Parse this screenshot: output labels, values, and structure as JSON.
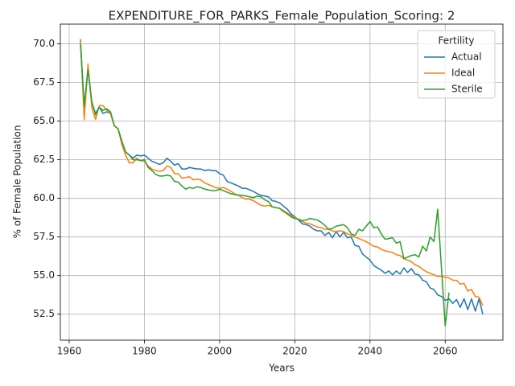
{
  "chart_data": {
    "type": "line",
    "title": "EXPENDITURE_FOR_PARKS_Female_Population_Scoring: 2",
    "x_label": "Years",
    "y_label": "% of Female Population",
    "legend_title": "Fertility",
    "legend": "upper right",
    "grid": true,
    "xlim": [
      1957.65,
      2075.35
    ],
    "ylim": [
      50.82,
      71.28
    ],
    "xticks": [
      1960,
      1980,
      2000,
      2020,
      2040,
      2060
    ],
    "yticks": [
      52.5,
      {
        "value": 55,
        "label": "55.0"
      },
      57.5,
      {
        "value": 60,
        "label": "60.0"
      },
      62.5,
      {
        "value": 65,
        "label": "65.0"
      },
      67.5,
      {
        "value": 70,
        "label": "70.0"
      }
    ],
    "x": [
      1963,
      1964,
      1965,
      1966,
      1967,
      1968,
      1969,
      1970,
      1971,
      1972,
      1973,
      1974,
      1975,
      1976,
      1977,
      1978,
      1979,
      1980,
      1981,
      1982,
      1983,
      1984,
      1985,
      1986,
      1987,
      1988,
      1989,
      1990,
      1991,
      1992,
      1993,
      1994,
      1995,
      1996,
      1997,
      1998,
      1999,
      2000,
      2001,
      2002,
      2003,
      2004,
      2005,
      2006,
      2007,
      2008,
      2009,
      2010,
      2011,
      2012,
      2013,
      2014,
      2015,
      2016,
      2017,
      2018,
      2019,
      2020,
      2021,
      2022,
      2023,
      2024,
      2025,
      2026,
      2027,
      2028,
      2029,
      2030,
      2031,
      2032,
      2033,
      2034,
      2035,
      2036,
      2037,
      2038,
      2039,
      2040,
      2041,
      2042,
      2043,
      2044,
      2045,
      2046,
      2047,
      2048,
      2049,
      2050,
      2051,
      2052,
      2053,
      2054,
      2055,
      2056,
      2057,
      2058,
      2059,
      2060,
      2061,
      2062,
      2063,
      2064,
      2065,
      2066,
      2067,
      2068,
      2069,
      2070
    ],
    "series": [
      {
        "name": "Actual",
        "color": "#1f77b4",
        "values": [
          70.3,
          65.8,
          68.5,
          66.2,
          65.5,
          65.9,
          65.5,
          65.6,
          65.5,
          64.7,
          64.5,
          63.7,
          63.0,
          62.8,
          62.6,
          62.8,
          62.75,
          62.8,
          62.6,
          62.4,
          62.3,
          62.2,
          62.3,
          62.6,
          62.4,
          62.15,
          62.25,
          61.9,
          61.9,
          62.0,
          61.95,
          61.9,
          61.9,
          61.8,
          61.85,
          61.8,
          61.8,
          61.6,
          61.5,
          61.1,
          61.0,
          60.9,
          60.8,
          60.65,
          60.65,
          60.55,
          60.45,
          60.3,
          60.2,
          60.15,
          60.1,
          59.85,
          59.8,
          59.7,
          59.5,
          59.3,
          59.0,
          58.8,
          58.6,
          58.35,
          58.3,
          58.2,
          58.0,
          57.9,
          57.9,
          57.6,
          57.8,
          57.45,
          57.85,
          57.5,
          57.8,
          57.45,
          57.5,
          56.95,
          56.9,
          56.4,
          56.2,
          56.0,
          55.65,
          55.5,
          55.35,
          55.15,
          55.3,
          55.05,
          55.3,
          55.1,
          55.5,
          55.2,
          55.45,
          55.1,
          55.05,
          54.7,
          54.6,
          54.2,
          54.1,
          53.75,
          53.65,
          53.4,
          53.5,
          53.2,
          53.45,
          52.95,
          53.5,
          52.8,
          53.5,
          52.7,
          53.5,
          52.5
        ]
      },
      {
        "name": "Ideal",
        "color": "#ff7f0e",
        "values": [
          70.3,
          65.1,
          68.7,
          65.9,
          65.1,
          66.0,
          66.0,
          65.7,
          65.5,
          64.7,
          64.5,
          63.5,
          62.8,
          62.3,
          62.3,
          62.6,
          62.45,
          62.4,
          62.1,
          61.9,
          61.8,
          61.75,
          61.8,
          62.1,
          62.0,
          61.6,
          61.6,
          61.3,
          61.35,
          61.4,
          61.2,
          61.25,
          61.2,
          61.0,
          60.9,
          60.8,
          60.7,
          60.65,
          60.7,
          60.6,
          60.45,
          60.3,
          60.2,
          60.05,
          59.95,
          59.95,
          59.85,
          59.7,
          59.55,
          59.5,
          59.55,
          59.45,
          59.4,
          59.35,
          59.2,
          59.05,
          58.9,
          58.75,
          58.65,
          58.5,
          58.4,
          58.35,
          58.25,
          58.15,
          58.1,
          58.0,
          58.0,
          57.9,
          57.85,
          57.9,
          57.85,
          57.7,
          57.6,
          57.5,
          57.4,
          57.3,
          57.2,
          57.05,
          56.9,
          56.85,
          56.7,
          56.6,
          56.55,
          56.5,
          56.35,
          56.3,
          56.1,
          56.0,
          55.9,
          55.7,
          55.6,
          55.4,
          55.25,
          55.15,
          55.05,
          54.95,
          54.95,
          54.9,
          54.85,
          54.7,
          54.7,
          54.45,
          54.5,
          54.0,
          54.1,
          53.65,
          53.6,
          53.05
        ]
      },
      {
        "name": "Sterile",
        "color": "#2ca02c",
        "values": [
          70.0,
          66.0,
          68.3,
          66.3,
          65.4,
          65.9,
          65.7,
          65.8,
          65.6,
          64.7,
          64.5,
          63.7,
          63.0,
          62.8,
          62.5,
          62.5,
          62.45,
          62.5,
          62.0,
          61.8,
          61.55,
          61.45,
          61.45,
          61.5,
          61.45,
          61.1,
          61.05,
          60.8,
          60.6,
          60.7,
          60.65,
          60.75,
          60.7,
          60.6,
          60.55,
          60.5,
          60.5,
          60.6,
          60.5,
          60.4,
          60.3,
          60.25,
          60.2,
          60.2,
          60.15,
          60.1,
          60.05,
          60.15,
          60.1,
          59.9,
          59.8,
          59.45,
          59.4,
          59.35,
          59.15,
          59.0,
          58.8,
          58.7,
          58.65,
          58.55,
          58.6,
          58.7,
          58.65,
          58.6,
          58.45,
          58.25,
          58.0,
          58.05,
          58.2,
          58.25,
          58.3,
          58.1,
          57.7,
          57.6,
          58.0,
          57.9,
          58.2,
          58.5,
          58.1,
          58.15,
          57.7,
          57.35,
          57.4,
          57.45,
          57.1,
          57.2,
          56.1,
          56.2,
          56.3,
          56.35,
          56.2,
          56.9,
          56.6,
          57.5,
          57.2,
          59.3,
          55.5,
          51.75,
          53.9,
          null,
          null,
          null,
          null,
          null,
          null,
          null,
          null,
          null
        ]
      }
    ]
  }
}
